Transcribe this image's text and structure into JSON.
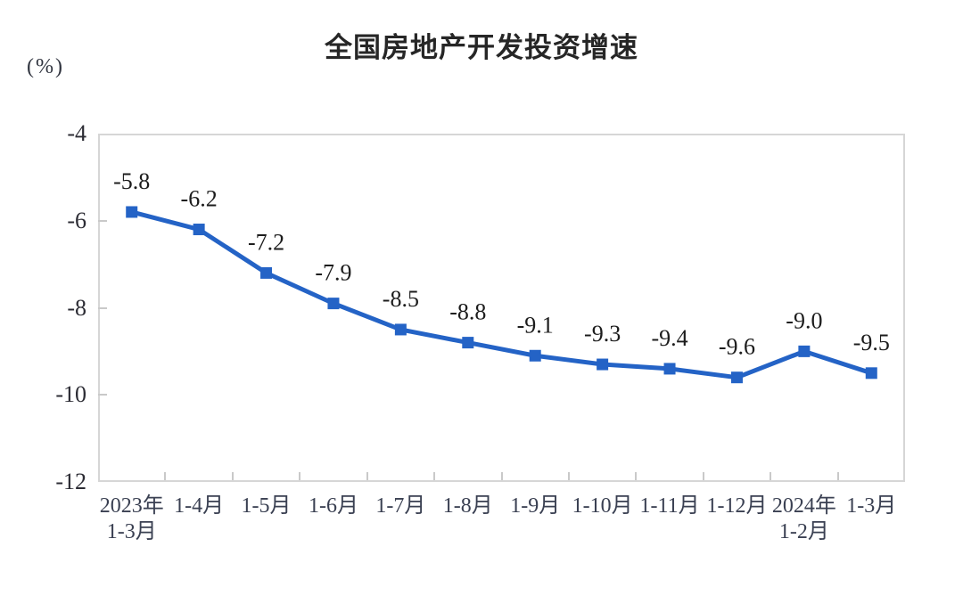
{
  "page": {
    "background": "#ffffff"
  },
  "header": {
    "title": "全国房地产开发投资增速",
    "unit_label": "(%)"
  },
  "chart_data": {
    "type": "line",
    "title": "全国房地产开发投资增速",
    "ylabel": "(%)",
    "categories": [
      [
        "2023年",
        "1-3月"
      ],
      [
        "1-4月"
      ],
      [
        "1-5月"
      ],
      [
        "1-6月"
      ],
      [
        "1-7月"
      ],
      [
        "1-8月"
      ],
      [
        "1-9月"
      ],
      [
        "1-10月"
      ],
      [
        "1-11月"
      ],
      [
        "1-12月"
      ],
      [
        "2024年",
        "1-2月"
      ],
      [
        "1-3月"
      ]
    ],
    "values": [
      -5.8,
      -6.2,
      -7.2,
      -7.9,
      -8.5,
      -8.8,
      -9.1,
      -9.3,
      -9.4,
      -9.6,
      -9.0,
      -9.5
    ],
    "data_labels": [
      "-5.8",
      "-6.2",
      "-7.2",
      "-7.9",
      "-8.5",
      "-8.8",
      "-9.1",
      "-9.3",
      "-9.4",
      "-9.6",
      "-9.0",
      "-9.5"
    ],
    "ylim": [
      -12,
      -4
    ],
    "y_ticks": [
      {
        "label": "-4",
        "value": -4
      },
      {
        "label": "-6",
        "value": -6
      },
      {
        "label": "-8",
        "value": -8
      },
      {
        "label": "-10",
        "value": -10
      },
      {
        "label": "-12",
        "value": -12
      }
    ],
    "grid": false,
    "legend": "none",
    "marker": "square",
    "colors": {
      "series": "#2463c6",
      "axis_border": "#d6d6d6",
      "tick": "#c9c9c9",
      "data_label_text": "#1c1c1c",
      "axis_text": "#3a4052"
    }
  }
}
